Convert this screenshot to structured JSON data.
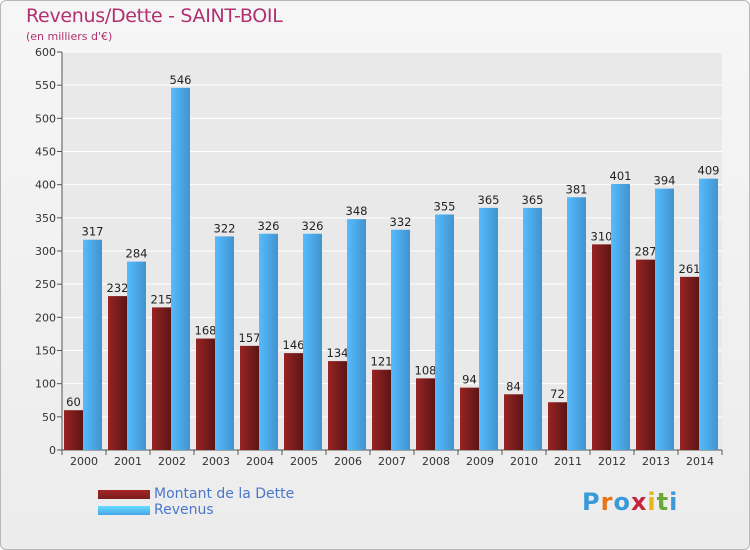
{
  "header": {
    "title": "Revenus/Dette - SAINT-BOIL",
    "subtitle": "(en milliers d'€)"
  },
  "legend": [
    {
      "label": "Montant de la Dette",
      "color": "#7a1c1c"
    },
    {
      "label": "Revenus",
      "color": "#4aa3e6"
    }
  ],
  "logo": {
    "letters": [
      "P",
      "r",
      "o",
      "x",
      "i",
      "t",
      "i"
    ],
    "colors": [
      "#3a9ad9",
      "#e8731a",
      "#3a9ad9",
      "#c7253e",
      "#e8b51a",
      "#6aa83a",
      "#3a9ad9"
    ]
  },
  "chart_data": {
    "type": "bar",
    "categories": [
      "2000",
      "2001",
      "2002",
      "2003",
      "2004",
      "2005",
      "2006",
      "2007",
      "2008",
      "2009",
      "2010",
      "2011",
      "2012",
      "2013",
      "2014"
    ],
    "series": [
      {
        "name": "Montant de la Dette",
        "values": [
          60,
          232,
          215,
          168,
          157,
          146,
          134,
          121,
          108,
          94,
          84,
          72,
          310,
          287,
          261
        ],
        "color": "#7a1c1c"
      },
      {
        "name": "Revenus",
        "values": [
          317,
          284,
          546,
          322,
          326,
          326,
          348,
          332,
          355,
          365,
          365,
          381,
          401,
          394,
          409
        ],
        "color": "#4aa3e6"
      }
    ],
    "yticks": [
      0,
      50,
      100,
      150,
      200,
      250,
      300,
      350,
      400,
      450,
      500,
      550,
      600
    ],
    "ylim": [
      0,
      600
    ],
    "grid": true
  }
}
